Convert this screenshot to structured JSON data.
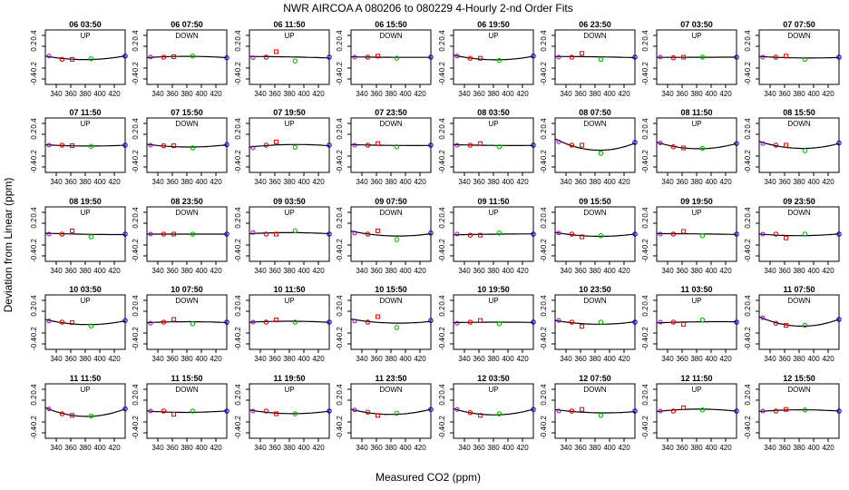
{
  "chart_data": {
    "type": "scatter",
    "title": "NWR   AIRCOA A   080206 to 080229   4-Hourly 2-nd Order Fits",
    "xlabel": "Measured CO2 (ppm)",
    "ylabel": "Deviation from Linear (ppm)",
    "xlim": [
      325,
      435
    ],
    "ylim": [
      -0.5,
      0.5
    ],
    "xticks": [
      340,
      380,
      420
    ],
    "xticks_minor": [
      360,
      400
    ],
    "yticks": [
      0.2,
      -0.2
    ],
    "yticks_minor": [
      0.4,
      -0.4
    ],
    "standards_x": [
      330,
      348,
      362,
      388,
      435
    ],
    "series_colors": [
      "#9900cc",
      "#dd0000",
      "#dd0000",
      "#00bb00",
      "#0000cc"
    ],
    "line_color": "#000000",
    "panels": [
      {
        "label": "06 03:50",
        "dir": "UP",
        "y": [
          0.02,
          -0.04,
          -0.04,
          -0.03,
          0.02
        ]
      },
      {
        "label": "06 07:50",
        "dir": "DOWN",
        "y": [
          0.0,
          0.0,
          0.01,
          0.02,
          -0.01
        ]
      },
      {
        "label": "06 11:50",
        "dir": "UP",
        "y": [
          -0.01,
          0.0,
          0.1,
          -0.07,
          0.0
        ]
      },
      {
        "label": "06 15:50",
        "dir": "DOWN",
        "y": [
          0.0,
          0.0,
          0.02,
          -0.02,
          0.0
        ]
      },
      {
        "label": "06 19:50",
        "dir": "UP",
        "y": [
          0.02,
          -0.02,
          -0.02,
          -0.06,
          0.02
        ]
      },
      {
        "label": "06 23:50",
        "dir": "DOWN",
        "y": [
          0.0,
          0.0,
          0.07,
          -0.04,
          0.0
        ]
      },
      {
        "label": "07 03:50",
        "dir": "UP",
        "y": [
          0.0,
          -0.01,
          0.0,
          0.0,
          0.0
        ]
      },
      {
        "label": "07 07:50",
        "dir": "DOWN",
        "y": [
          0.0,
          0.0,
          0.02,
          -0.04,
          0.0
        ]
      },
      {
        "label": "07 11:50",
        "dir": "UP",
        "y": [
          0.0,
          0.0,
          -0.01,
          -0.02,
          0.0
        ]
      },
      {
        "label": "07 15:50",
        "dir": "DOWN",
        "y": [
          0.0,
          -0.01,
          -0.01,
          -0.05,
          0.01
        ]
      },
      {
        "label": "07 19:50",
        "dir": "UP",
        "y": [
          -0.05,
          0.0,
          0.06,
          -0.04,
          0.0
        ]
      },
      {
        "label": "07 23:50",
        "dir": "DOWN",
        "y": [
          0.0,
          0.0,
          0.03,
          -0.03,
          0.0
        ]
      },
      {
        "label": "08 03:50",
        "dir": "UP",
        "y": [
          0.0,
          0.0,
          0.03,
          -0.03,
          0.0
        ]
      },
      {
        "label": "08 07:50",
        "dir": "DOWN",
        "y": [
          0.06,
          0.0,
          0.0,
          -0.15,
          0.05
        ]
      },
      {
        "label": "08 11:50",
        "dir": "UP",
        "y": [
          0.04,
          -0.03,
          -0.05,
          -0.06,
          0.03
        ]
      },
      {
        "label": "08 15:50",
        "dir": "DOWN",
        "y": [
          0.03,
          0.0,
          0.0,
          -0.1,
          0.04
        ]
      },
      {
        "label": "08 19:50",
        "dir": "UP",
        "y": [
          0.0,
          0.0,
          0.06,
          -0.05,
          0.0
        ]
      },
      {
        "label": "08 23:50",
        "dir": "DOWN",
        "y": [
          0.0,
          0.0,
          0.0,
          0.0,
          0.0
        ]
      },
      {
        "label": "09 03:50",
        "dir": "UP",
        "y": [
          0.03,
          0.0,
          0.0,
          0.06,
          0.0
        ]
      },
      {
        "label": "09 07:50",
        "dir": "DOWN",
        "y": [
          0.02,
          0.0,
          0.06,
          -0.1,
          0.02
        ]
      },
      {
        "label": "09 11:50",
        "dir": "UP",
        "y": [
          0.0,
          -0.02,
          -0.02,
          0.02,
          0.0
        ]
      },
      {
        "label": "09 15:50",
        "dir": "DOWN",
        "y": [
          0.02,
          0.0,
          -0.05,
          -0.03,
          0.0
        ]
      },
      {
        "label": "09 19:50",
        "dir": "UP",
        "y": [
          0.0,
          0.0,
          0.05,
          -0.03,
          0.0
        ]
      },
      {
        "label": "09 23:50",
        "dir": "DOWN",
        "y": [
          0.0,
          0.0,
          -0.07,
          0.0,
          0.0
        ]
      },
      {
        "label": "10 03:50",
        "dir": "UP",
        "y": [
          0.02,
          0.0,
          -0.01,
          -0.07,
          0.03
        ]
      },
      {
        "label": "10 07:50",
        "dir": "DOWN",
        "y": [
          -0.02,
          0.0,
          0.05,
          -0.03,
          0.0
        ]
      },
      {
        "label": "10 11:50",
        "dir": "UP",
        "y": [
          0.0,
          0.0,
          0.04,
          0.0,
          0.0
        ]
      },
      {
        "label": "10 15:50",
        "dir": "DOWN",
        "y": [
          0.02,
          0.0,
          0.1,
          -0.1,
          0.03
        ]
      },
      {
        "label": "10 19:50",
        "dir": "UP",
        "y": [
          -0.02,
          0.0,
          0.03,
          -0.03,
          0.0
        ]
      },
      {
        "label": "10 23:50",
        "dir": "DOWN",
        "y": [
          0.03,
          0.0,
          -0.08,
          0.0,
          0.0
        ]
      },
      {
        "label": "11 03:50",
        "dir": "UP",
        "y": [
          0.0,
          0.0,
          -0.04,
          0.04,
          0.0
        ]
      },
      {
        "label": "11 07:50",
        "dir": "DOWN",
        "y": [
          0.08,
          -0.02,
          -0.06,
          -0.06,
          0.05
        ]
      },
      {
        "label": "11 11:50",
        "dir": "UP",
        "y": [
          0.04,
          -0.05,
          -0.08,
          -0.09,
          0.04
        ]
      },
      {
        "label": "11 15:50",
        "dir": "DOWN",
        "y": [
          0.0,
          0.0,
          -0.06,
          0.0,
          0.0
        ]
      },
      {
        "label": "11 19:50",
        "dir": "UP",
        "y": [
          0.0,
          0.0,
          -0.05,
          -0.05,
          0.0
        ]
      },
      {
        "label": "11 23:50",
        "dir": "DOWN",
        "y": [
          0.02,
          -0.02,
          -0.08,
          -0.04,
          0.03
        ]
      },
      {
        "label": "12 03:50",
        "dir": "UP",
        "y": [
          0.03,
          -0.03,
          -0.08,
          -0.05,
          0.03
        ]
      },
      {
        "label": "12 07:50",
        "dir": "DOWN",
        "y": [
          0.0,
          0.0,
          0.03,
          -0.08,
          0.0
        ]
      },
      {
        "label": "12 11:50",
        "dir": "UP",
        "y": [
          0.0,
          0.0,
          0.06,
          0.02,
          0.0
        ]
      },
      {
        "label": "12 15:50",
        "dir": "DOWN",
        "y": [
          0.0,
          0.0,
          0.03,
          0.02,
          0.0
        ]
      }
    ]
  }
}
